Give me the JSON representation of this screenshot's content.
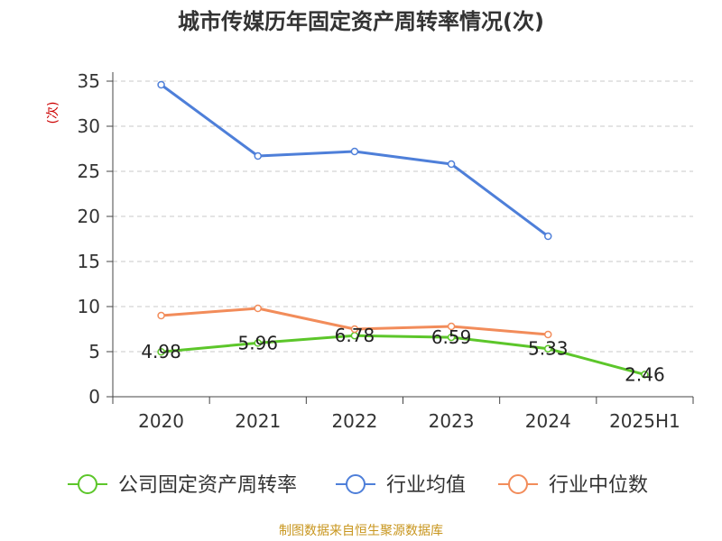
{
  "chart_data": {
    "type": "line",
    "title": "城市传媒历年固定资产周转率情况(次)",
    "ylabel": "(次)",
    "xlabel": "",
    "categories": [
      "2020",
      "2021",
      "2022",
      "2023",
      "2024",
      "2025H1"
    ],
    "ylim": [
      0,
      35
    ],
    "yticks": [
      0,
      5,
      10,
      15,
      20,
      25,
      30,
      35
    ],
    "grid": "horizontal-dashed",
    "legend_position": "bottom",
    "series": [
      {
        "name": "公司固定资产周转率",
        "color": "#5cc62a",
        "values": [
          4.98,
          5.96,
          6.78,
          6.59,
          5.33,
          2.46
        ],
        "labels": [
          "4.98",
          "5.96",
          "6.78",
          "6.59",
          "5.33",
          "2.46"
        ]
      },
      {
        "name": "行业均值",
        "color": "#4e7fd9",
        "values": [
          34.6,
          26.7,
          27.2,
          25.8,
          17.8,
          null
        ]
      },
      {
        "name": "行业中位数",
        "color": "#f28c5a",
        "values": [
          9.0,
          9.8,
          7.5,
          7.8,
          6.9,
          null
        ]
      }
    ]
  },
  "source_note": "制图数据来自恒生聚源数据库"
}
